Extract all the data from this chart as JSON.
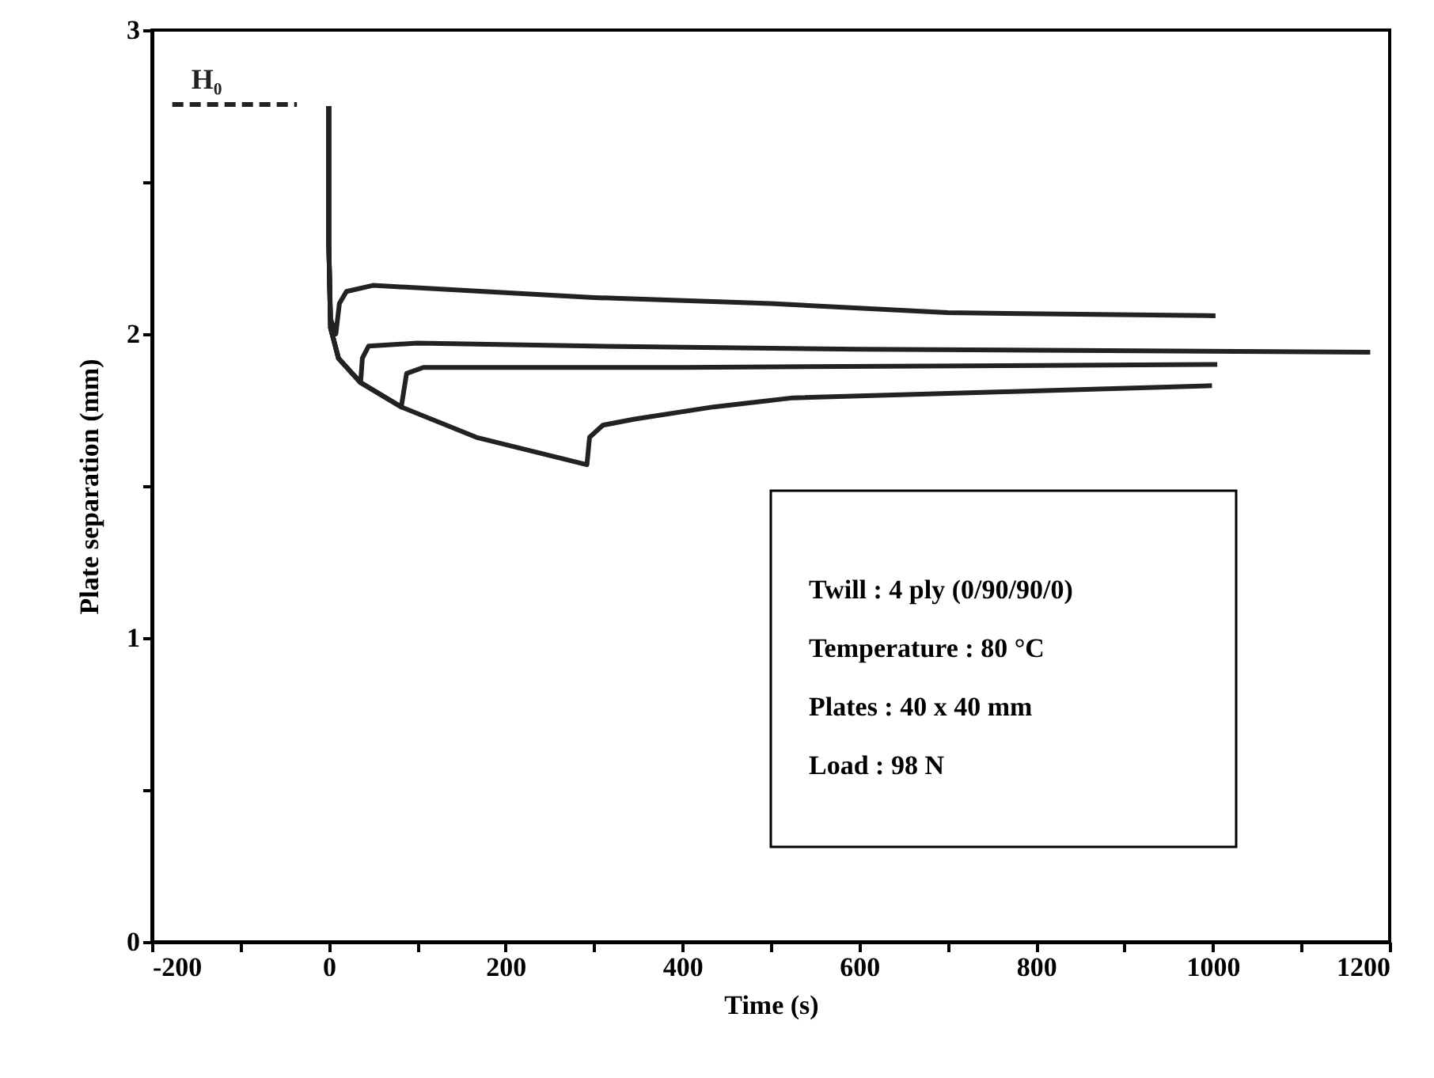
{
  "chart_data": {
    "type": "line",
    "xlabel": "Time (s)",
    "ylabel": "Plate separation (mm)",
    "xlim": [
      -200,
      1200
    ],
    "ylim": [
      0,
      3
    ],
    "xticks": [
      -200,
      {
        "value": -100,
        "label": null
      },
      0,
      {
        "value": 100,
        "label": null
      },
      200,
      {
        "value": 300,
        "label": null
      },
      400,
      {
        "value": 500,
        "label": null
      },
      600,
      {
        "value": 700,
        "label": null
      },
      800,
      {
        "value": 900,
        "label": null
      },
      1000,
      {
        "value": 1100,
        "label": null
      },
      1200
    ],
    "yticks": [
      0,
      {
        "value": 0.5,
        "label": null
      },
      1,
      {
        "value": 1.5,
        "label": null
      },
      2,
      {
        "value": 2.5,
        "label": null
      },
      3
    ],
    "grid": false,
    "marker": "none",
    "line_style": "solid",
    "series": [
      {
        "color": "#222222",
        "x": [
          0,
          0,
          2,
          8,
          12,
          20,
          50,
          300,
          500,
          700,
          1003
        ],
        "values": [
          2.75,
          2.3,
          2.05,
          2.0,
          2.1,
          2.14,
          2.16,
          2.12,
          2.1,
          2.07,
          2.06
        ]
      },
      {
        "color": "#222222",
        "x": [
          0,
          0,
          2,
          11,
          36,
          38,
          45,
          100,
          300,
          600,
          1178
        ],
        "values": [
          2.75,
          2.3,
          2.02,
          1.92,
          1.84,
          1.92,
          1.96,
          1.97,
          1.96,
          1.95,
          1.94
        ]
      },
      {
        "color": "#222222",
        "x": [
          0,
          0,
          2,
          11,
          36,
          82,
          88,
          107,
          400,
          1005
        ],
        "values": [
          2.75,
          2.3,
          2.02,
          1.92,
          1.84,
          1.76,
          1.87,
          1.89,
          1.89,
          1.9
        ]
      },
      {
        "color": "#222222",
        "x": [
          0,
          0,
          2,
          11,
          36,
          82,
          167,
          292,
          295,
          310,
          346,
          435,
          525,
          763,
          999
        ],
        "values": [
          2.75,
          2.3,
          2.02,
          1.92,
          1.84,
          1.76,
          1.66,
          1.57,
          1.66,
          1.7,
          1.72,
          1.76,
          1.79,
          1.81,
          1.83
        ]
      },
      {
        "name": "H₀",
        "color": "#222222",
        "line_style": "dashed",
        "x": [
          -177,
          -36
        ],
        "values": [
          2.755,
          2.755
        ]
      }
    ],
    "annotations": [
      "Twill : 4 ply (0/90/90/0)",
      "Temperature : 80 °C",
      "Plates : 40 x 40 mm",
      "Load : 98 N"
    ]
  }
}
